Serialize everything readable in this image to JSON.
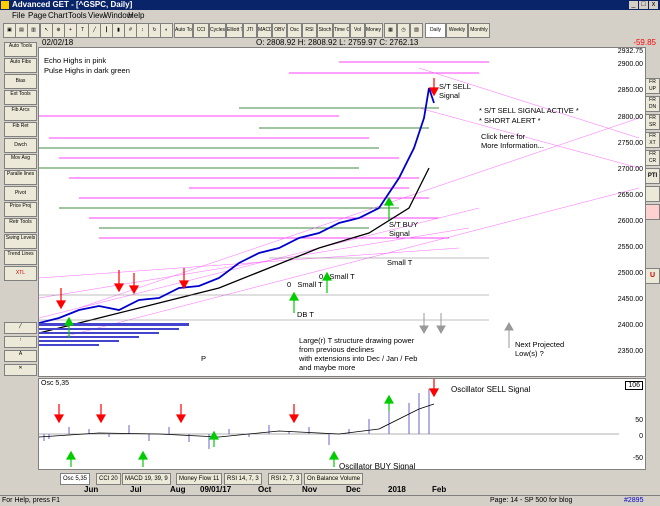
{
  "window": {
    "title": "Advanced GET - [^GSPC, Daily]",
    "minimize": "_",
    "maximize": "□",
    "close": "x"
  },
  "menu": [
    "File",
    "Page",
    "Chart",
    "Tools",
    "View",
    "Window",
    "Help"
  ],
  "toolbar": [
    "Auto\nTools",
    "CCI",
    "Cycles",
    "Elliott\nTrig",
    "JTI",
    "MACD",
    "OBV",
    "Osc",
    "RSI",
    "Stoch",
    "Time\nCycle",
    "Vol",
    "Money\nFlow",
    "Daily",
    "Weekly",
    "Monthly"
  ],
  "info": {
    "date": "02/02/18",
    "ohlc": "O: 2808.92   H: 2808.92   L: 2759.97   C: 2762.13",
    "price_tag": "-59.85"
  },
  "left_tools": [
    "Auto\nTools",
    "Auto\nFibs",
    "Bias",
    "Ext\nTools",
    "Fib\nArcs",
    "Fib\nRet",
    "Dwch",
    "Mov\nAvg",
    "Paralle\nlines",
    "Pivot",
    "Price\nProj",
    "Retr\nTools",
    "Swing\nLevels",
    "Trend\nLines",
    "XTL"
  ],
  "right_tools": [
    "FR\nUP",
    "FR\nDN",
    "FR\nSR",
    "FR\nXT",
    "FR\nCR",
    "PTI",
    "",
    "",
    "U"
  ],
  "annotations": {
    "echo": "Echo Highs in pink",
    "pulse": "Pulse Highs in dark green",
    "st_sell": "S/T SELL\nSignal",
    "alert1": "* S/T SELL SIGNAL ACTIVE *",
    "alert2": "* SHORT ALERT *",
    "click": "Click here for\nMore Information...",
    "st_buy": "S/T BUY\nSignal",
    "small_t1": "Small T",
    "small_t2": "0   Small T",
    "small_t3": "0   Small T",
    "db_t": "DB T",
    "p": "P",
    "larger": "Large(r) T structure drawing power\nfrom previous declines\nwith extensions into Dec / Jan / Feb\nand maybe more",
    "next_low": "Next Projected\nLow(s) ?",
    "osc_sell": "Oscillator SELL Signal",
    "osc_buy": "Oscillator BUY Signal"
  },
  "y_labels": [
    "2932.75",
    "2900.00",
    "2850.00",
    "2800.00",
    "2750.00",
    "2700.00",
    "2650.00",
    "2600.00",
    "2550.00",
    "2500.00",
    "2450.00",
    "2400.00",
    "2350.00"
  ],
  "osc": {
    "label": "Osc 5,35",
    "ticks": [
      "106",
      "50",
      "0",
      "-50"
    ]
  },
  "tabs": [
    "Osc 5,35",
    "CCI 20",
    "MACD 19, 39, 9",
    "Money Flow 11",
    "RSI 14, 7, 3",
    "RSI 2, 7, 3",
    "On Balance Volume"
  ],
  "months": [
    "Jun",
    "Jul",
    "Aug",
    "09/01/17",
    "Oct",
    "Nov",
    "Dec",
    "2018",
    "Feb"
  ],
  "status": {
    "left": "For Help, press F1",
    "mid": "Page: 14 - SP 500 for blog",
    "right": "#2895"
  },
  "colors": {
    "echo": "#ff00ff",
    "pulse": "#006400",
    "price": "#0000ff",
    "signal": "#ff0000",
    "buy": "#00cc00"
  }
}
